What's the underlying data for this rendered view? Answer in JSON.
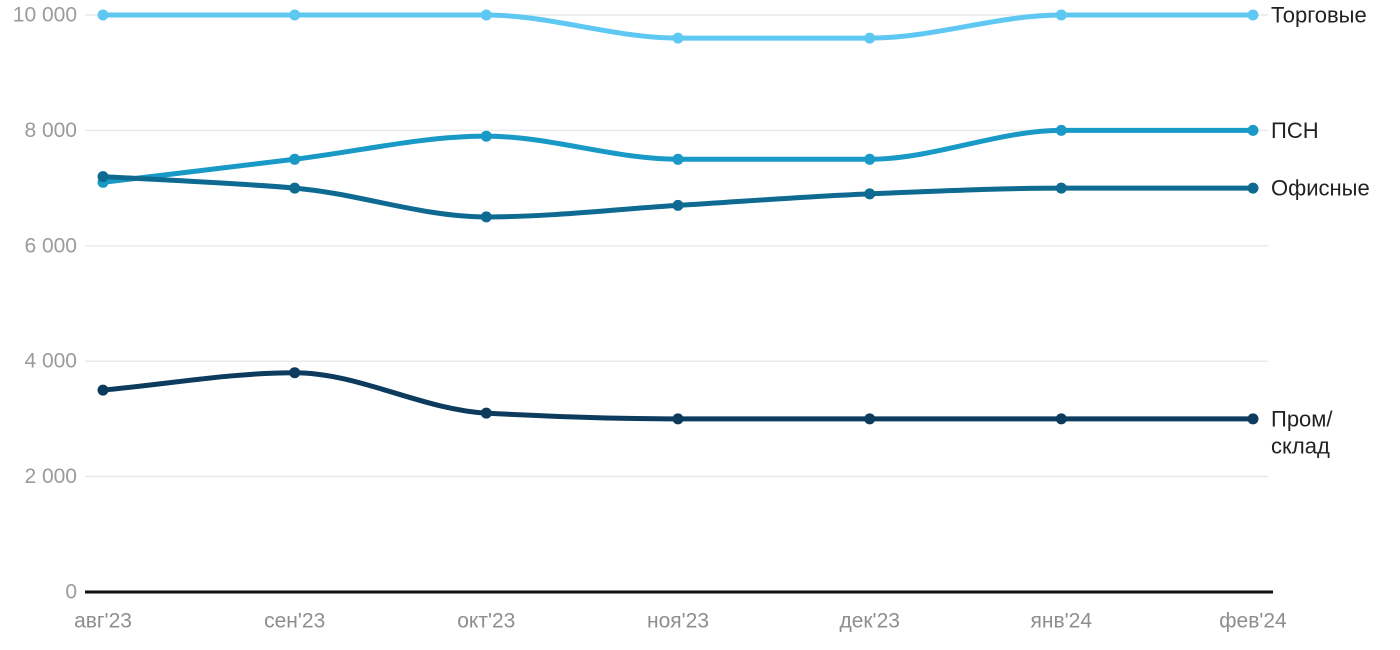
{
  "chart_data": {
    "type": "line",
    "curve": "monotone",
    "x_labels": [
      "авг'23",
      "сен'23",
      "окт'23",
      "ноя'23",
      "дек'23",
      "янв'24",
      "фев'24"
    ],
    "series": [
      {
        "id": "torgovye",
        "name": "Торговые",
        "label_lines": [
          "Торговые"
        ],
        "color": "#5FC8F2",
        "values": [
          10000,
          10000,
          10000,
          9600,
          9600,
          10000,
          10000
        ]
      },
      {
        "id": "psn",
        "name": "ПСН",
        "label_lines": [
          "ПСН"
        ],
        "color": "#1899C6",
        "values": [
          7100,
          7500,
          7900,
          7500,
          7500,
          8000,
          8000
        ]
      },
      {
        "id": "ofisnye",
        "name": "Офисные",
        "label_lines": [
          "Офисные"
        ],
        "color": "#0E6A91",
        "values": [
          7200,
          7000,
          6500,
          6700,
          6900,
          7000,
          7000
        ]
      },
      {
        "id": "prom-sklad",
        "name": "Пром/склад",
        "label_lines": [
          "Пром/",
          "склад"
        ],
        "color": "#0C3B5D",
        "values": [
          3500,
          3800,
          3100,
          3000,
          3000,
          3000,
          3000
        ]
      }
    ],
    "y_ticks": [
      {
        "value": 0,
        "label": "0"
      },
      {
        "value": 2000,
        "label": "2 000"
      },
      {
        "value": 4000,
        "label": "4 000"
      },
      {
        "value": 6000,
        "label": "6 000"
      },
      {
        "value": 8000,
        "label": "8 000"
      },
      {
        "value": 10000,
        "label": "10 000"
      }
    ],
    "ylim": [
      0,
      10000
    ],
    "grid": true,
    "legend_position": "end-of-line"
  },
  "style": {
    "background": "#FFFFFF",
    "grid_color": "#E8E8E8",
    "axis_color": "#111111",
    "tick_label_color": "#9B9B9B",
    "x_label_color": "#8E8E8E",
    "series_label_color": "#222222"
  }
}
